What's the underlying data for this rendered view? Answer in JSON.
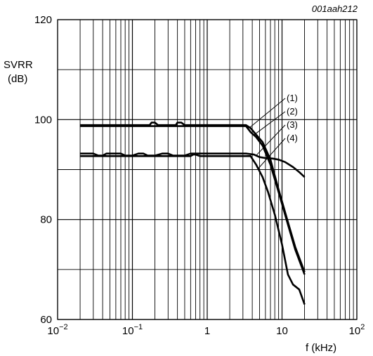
{
  "figure_code": "001aah212",
  "chart_data": {
    "type": "line",
    "x_scale": "log",
    "xlim": [
      0.01,
      100
    ],
    "ylim": [
      60,
      120
    ],
    "xlabel": "f (kHz)",
    "ylabel_line1": "SVRR",
    "ylabel_line2": "(dB)",
    "x_ticks": [
      {
        "value": 0.01,
        "base": "10",
        "exp": "−2"
      },
      {
        "value": 0.1,
        "base": "10",
        "exp": "−1"
      },
      {
        "value": 1,
        "base": "1",
        "exp": ""
      },
      {
        "value": 10,
        "base": "10",
        "exp": ""
      },
      {
        "value": 100,
        "base": "10",
        "exp": "2"
      }
    ],
    "y_ticks": [
      {
        "value": 60,
        "label": "60"
      },
      {
        "value": 80,
        "label": "80"
      },
      {
        "value": 100,
        "label": "100"
      },
      {
        "value": 120,
        "label": "120"
      }
    ],
    "y_minor_ticks": [
      70,
      90,
      110
    ],
    "grid": true,
    "series": [
      {
        "name": "(1)",
        "x": [
          0.02,
          0.17,
          0.18,
          0.2,
          0.22,
          0.38,
          0.4,
          0.45,
          0.5,
          3.3,
          3.8,
          4.5,
          5.5,
          7,
          9,
          12,
          15,
          20
        ],
        "y": [
          98.9,
          98.9,
          99.4,
          99.4,
          98.9,
          98.9,
          99.4,
          99.4,
          98.9,
          98.9,
          98.3,
          97.0,
          95.5,
          92.0,
          86.0,
          79.5,
          74.5,
          69.5
        ]
      },
      {
        "name": "(2)",
        "x": [
          0.02,
          3.3,
          3.8,
          4.5,
          5.5,
          7,
          9,
          12,
          15,
          20
        ],
        "y": [
          98.7,
          98.7,
          97.5,
          96.5,
          94.8,
          91.0,
          85.5,
          79.0,
          74.0,
          69.0
        ]
      },
      {
        "name": "(3)",
        "x": [
          0.02,
          0.025,
          0.03,
          0.035,
          0.04,
          0.045,
          0.05,
          0.06,
          0.07,
          0.08,
          0.1,
          0.12,
          0.14,
          0.16,
          0.2,
          0.25,
          0.3,
          0.35,
          0.5,
          0.6,
          0.65,
          0.7,
          3.3,
          4.2,
          5.0,
          6.0,
          7.5,
          9.0,
          11,
          14,
          17,
          20
        ],
        "y": [
          93.2,
          93.2,
          93.2,
          92.8,
          92.8,
          93.2,
          93.2,
          93.2,
          93.2,
          92.8,
          92.8,
          93.2,
          93.2,
          92.8,
          92.8,
          93.2,
          93.2,
          92.8,
          92.8,
          93.2,
          93.2,
          93.2,
          93.2,
          93.0,
          92.5,
          92.3,
          92.2,
          92.0,
          91.5,
          90.5,
          89.5,
          88.5
        ]
      },
      {
        "name": "(4)",
        "x": [
          0.02,
          0.6,
          0.65,
          0.7,
          0.8,
          3.8,
          4.5,
          5.5,
          6.5,
          8,
          10,
          12,
          14,
          17,
          20
        ],
        "y": [
          92.7,
          92.7,
          93.0,
          93.0,
          92.7,
          92.7,
          91.0,
          88.5,
          85.5,
          81.0,
          75.0,
          69.0,
          67.0,
          66.0,
          63.0
        ]
      }
    ],
    "callout_labels": [
      "(1)",
      "(2)",
      "(3)",
      "(4)"
    ]
  }
}
